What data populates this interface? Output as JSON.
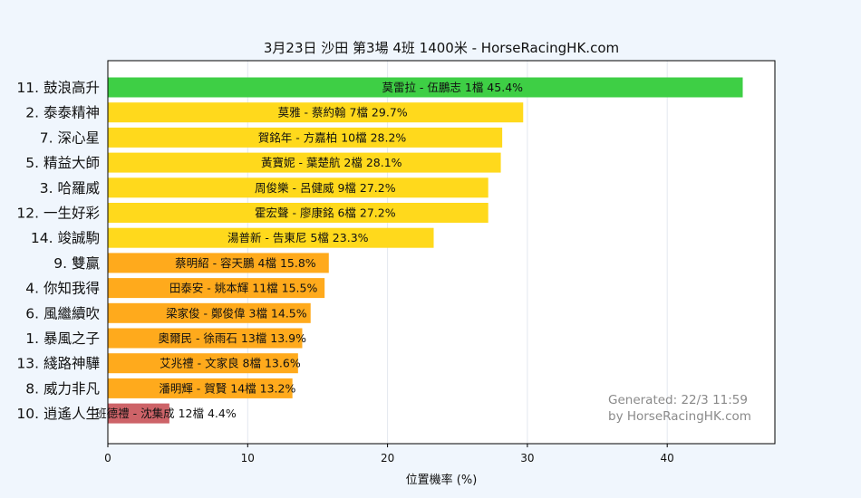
{
  "chart_data": {
    "type": "bar",
    "orientation": "horizontal",
    "title": "3月23日  沙田  第3場  4班  1400米 - HorseRacingHK.com",
    "xlabel": "位置機率 (%)",
    "ylabel": "",
    "xlim": [
      0,
      47.7
    ],
    "xticks": [
      0,
      10,
      20,
      30,
      40
    ],
    "grid": "vertical",
    "bars": [
      {
        "category": "11. 鼓浪高升",
        "label": "莫雷拉 - 伍鵬志 1檔  45.4%",
        "value": 45.4,
        "color": "#3ecf45"
      },
      {
        "category": "2. 泰泰精神",
        "label": "莫雅 - 蔡約翰 7檔  29.7%",
        "value": 29.7,
        "color": "#ffd91c"
      },
      {
        "category": "7. 深心星",
        "label": "賀銘年 - 方嘉柏 10檔  28.2%",
        "value": 28.2,
        "color": "#ffd91c"
      },
      {
        "category": "5. 精益大師",
        "label": "黃寶妮 - 葉楚航 2檔  28.1%",
        "value": 28.1,
        "color": "#ffd91c"
      },
      {
        "category": "3. 哈羅威",
        "label": "周俊樂 - 呂健威 9檔  27.2%",
        "value": 27.2,
        "color": "#ffd91c"
      },
      {
        "category": "12. 一生好彩",
        "label": "霍宏聲 - 廖康銘 6檔  27.2%",
        "value": 27.2,
        "color": "#ffd91c"
      },
      {
        "category": "14. 竣誠駒",
        "label": "湯普新 - 告東尼 5檔  23.3%",
        "value": 23.3,
        "color": "#ffd91c"
      },
      {
        "category": "9. 雙贏",
        "label": "蔡明紹 - 容天鵬 4檔  15.8%",
        "value": 15.8,
        "color": "#ffaa1c"
      },
      {
        "category": "4. 你知我得",
        "label": "田泰安 - 姚本輝 11檔  15.5%",
        "value": 15.5,
        "color": "#ffaa1c"
      },
      {
        "category": "6. 風繼續吹",
        "label": "梁家俊 - 鄭俊偉 3檔  14.5%",
        "value": 14.5,
        "color": "#ffaa1c"
      },
      {
        "category": "1. 暴風之子",
        "label": "奧爾民 - 徐雨石 13檔  13.9%",
        "value": 13.9,
        "color": "#ffaa1c"
      },
      {
        "category": "13. 綫路神驊",
        "label": "艾兆禮 - 文家良 8檔  13.6%",
        "value": 13.6,
        "color": "#ffaa1c"
      },
      {
        "category": "8. 威力非凡",
        "label": "潘明輝 - 賀賢 14檔  13.2%",
        "value": 13.2,
        "color": "#ffaa1c"
      },
      {
        "category": "10. 逍遙人生",
        "label": "班德禮 - 沈集成 12檔  4.4%",
        "value": 4.4,
        "color": "#cd6368"
      }
    ],
    "annotations": [
      "Generated: 22/3 11:59",
      "by HorseRacingHK.com"
    ]
  }
}
